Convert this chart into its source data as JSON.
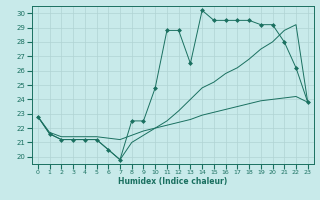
{
  "title": "",
  "xlabel": "Humidex (Indice chaleur)",
  "bg_color": "#c8eaea",
  "line_color": "#1a7060",
  "grid_color": "#b0d4d4",
  "xlim": [
    -0.5,
    23.5
  ],
  "ylim": [
    19.5,
    30.5
  ],
  "xticks": [
    0,
    1,
    2,
    3,
    4,
    5,
    6,
    7,
    8,
    9,
    10,
    11,
    12,
    13,
    14,
    15,
    16,
    17,
    18,
    19,
    20,
    21,
    22,
    23
  ],
  "yticks": [
    20,
    21,
    22,
    23,
    24,
    25,
    26,
    27,
    28,
    29,
    30
  ],
  "line1_x": [
    0,
    1,
    2,
    3,
    4,
    5,
    6,
    7,
    8,
    9,
    10,
    11,
    12,
    13,
    14,
    15,
    16,
    17,
    18,
    19,
    20,
    21,
    22,
    23
  ],
  "line1_y": [
    22.8,
    21.6,
    21.2,
    21.2,
    21.2,
    21.2,
    20.5,
    19.8,
    22.5,
    22.5,
    24.8,
    28.8,
    28.8,
    26.5,
    30.2,
    29.5,
    29.5,
    29.5,
    29.5,
    29.2,
    29.2,
    28.0,
    26.2,
    23.8
  ],
  "line2_x": [
    0,
    1,
    2,
    3,
    4,
    5,
    6,
    7,
    8,
    9,
    10,
    11,
    12,
    13,
    14,
    15,
    16,
    17,
    18,
    19,
    20,
    21,
    22,
    23
  ],
  "line2_y": [
    22.8,
    21.6,
    21.2,
    21.2,
    21.2,
    21.2,
    20.5,
    19.8,
    21.0,
    21.5,
    22.0,
    22.5,
    23.2,
    24.0,
    24.8,
    25.2,
    25.8,
    26.2,
    26.8,
    27.5,
    28.0,
    28.8,
    29.2,
    23.8
  ],
  "line3_x": [
    0,
    1,
    2,
    3,
    4,
    5,
    6,
    7,
    8,
    9,
    10,
    11,
    12,
    13,
    14,
    15,
    16,
    17,
    18,
    19,
    20,
    21,
    22,
    23
  ],
  "line3_y": [
    22.8,
    21.7,
    21.4,
    21.4,
    21.4,
    21.4,
    21.3,
    21.2,
    21.5,
    21.8,
    22.0,
    22.2,
    22.4,
    22.6,
    22.9,
    23.1,
    23.3,
    23.5,
    23.7,
    23.9,
    24.0,
    24.1,
    24.2,
    23.8
  ],
  "marker_size": 2.5
}
